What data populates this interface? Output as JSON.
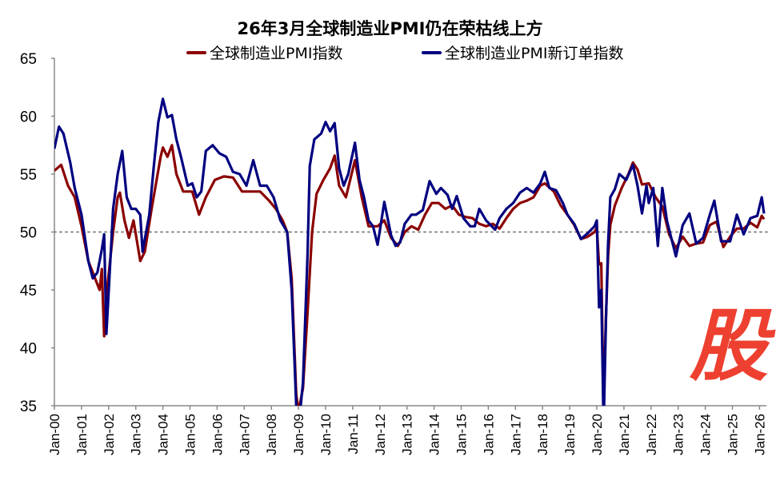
{
  "chart_data": {
    "type": "line",
    "title": "26年3月全球制造业PMI仍在荣枯线上方",
    "xlabel": "",
    "ylabel": "",
    "ylim": [
      35,
      65
    ],
    "xlim": [
      "2000-01",
      "2026-03"
    ],
    "yticks": [
      "35",
      "40",
      "45",
      "50",
      "55",
      "60",
      "65"
    ],
    "xticks": [
      "Jan-00",
      "Jan-01",
      "Jan-02",
      "Jan-03",
      "Jan-04",
      "Jan-05",
      "Jan-06",
      "Jan-07",
      "Jan-08",
      "Jan-09",
      "Jan-10",
      "Jan-11",
      "Jan-12",
      "Jan-13",
      "Jan-14",
      "Jan-15",
      "Jan-16",
      "Jan-17",
      "Jan-18",
      "Jan-19",
      "Jan-20",
      "Jan-21",
      "Jan-22",
      "Jan-23",
      "Jan-24",
      "Jan-25",
      "Jan-26"
    ],
    "reference_line": {
      "y": 50,
      "style": "dotted",
      "color": "#888888"
    },
    "grid": false,
    "legend_position": "top",
    "series": [
      {
        "name": "全球制造业PMI指数",
        "color": "#8b0000",
        "points": [
          [
            "2000-01",
            55.3
          ],
          [
            "2000-04",
            55.8
          ],
          [
            "2000-07",
            54
          ],
          [
            "2000-10",
            53
          ],
          [
            "2001-01",
            50.5
          ],
          [
            "2001-04",
            47.5
          ],
          [
            "2001-07",
            46
          ],
          [
            "2001-09",
            45
          ],
          [
            "2001-10",
            46.8
          ],
          [
            "2001-11",
            41
          ],
          [
            "2001-12",
            44.5
          ],
          [
            "2002-03",
            50
          ],
          [
            "2002-05",
            53
          ],
          [
            "2002-06",
            53.4
          ],
          [
            "2002-08",
            51
          ],
          [
            "2002-10",
            49.5
          ],
          [
            "2002-12",
            51
          ],
          [
            "2003-03",
            47.5
          ],
          [
            "2003-05",
            48.3
          ],
          [
            "2003-08",
            52
          ],
          [
            "2003-12",
            56.5
          ],
          [
            "2004-01",
            57.3
          ],
          [
            "2004-03",
            56.5
          ],
          [
            "2004-05",
            57.5
          ],
          [
            "2004-07",
            55
          ],
          [
            "2004-10",
            53.5
          ],
          [
            "2005-02",
            53.5
          ],
          [
            "2005-05",
            51.5
          ],
          [
            "2005-08",
            53
          ],
          [
            "2005-12",
            54.5
          ],
          [
            "2006-04",
            54.8
          ],
          [
            "2006-08",
            54.7
          ],
          [
            "2006-12",
            53.5
          ],
          [
            "2007-04",
            53.5
          ],
          [
            "2007-08",
            53.5
          ],
          [
            "2007-12",
            52.7
          ],
          [
            "2008-03",
            52
          ],
          [
            "2008-06",
            51
          ],
          [
            "2008-08",
            50
          ],
          [
            "2008-10",
            46
          ],
          [
            "2008-12",
            36
          ],
          [
            "2009-01",
            34.5
          ],
          [
            "2009-03",
            36.5
          ],
          [
            "2009-05",
            43
          ],
          [
            "2009-07",
            50
          ],
          [
            "2009-09",
            53.3
          ],
          [
            "2009-12",
            54.5
          ],
          [
            "2010-03",
            55.5
          ],
          [
            "2010-05",
            56.6
          ],
          [
            "2010-07",
            54
          ],
          [
            "2010-10",
            53
          ],
          [
            "2011-02",
            56.2
          ],
          [
            "2011-05",
            53
          ],
          [
            "2011-08",
            50.5
          ],
          [
            "2011-12",
            50.5
          ],
          [
            "2012-03",
            51
          ],
          [
            "2012-06",
            49.5
          ],
          [
            "2012-09",
            48.8
          ],
          [
            "2012-12",
            50
          ],
          [
            "2013-03",
            50.5
          ],
          [
            "2013-06",
            50.2
          ],
          [
            "2013-09",
            51.5
          ],
          [
            "2013-12",
            52.5
          ],
          [
            "2014-03",
            52.5
          ],
          [
            "2014-06",
            52
          ],
          [
            "2014-09",
            52.3
          ],
          [
            "2014-12",
            51.5
          ],
          [
            "2015-03",
            51.3
          ],
          [
            "2015-06",
            51.2
          ],
          [
            "2015-09",
            50.7
          ],
          [
            "2015-12",
            50.5
          ],
          [
            "2016-03",
            50.7
          ],
          [
            "2016-06",
            50.3
          ],
          [
            "2016-09",
            51.2
          ],
          [
            "2016-12",
            52
          ],
          [
            "2017-03",
            52.5
          ],
          [
            "2017-06",
            52.7
          ],
          [
            "2017-09",
            53
          ],
          [
            "2017-12",
            54
          ],
          [
            "2018-02",
            54.2
          ],
          [
            "2018-06",
            53.5
          ],
          [
            "2018-09",
            52.3
          ],
          [
            "2018-12",
            51.5
          ],
          [
            "2019-03",
            50.6
          ],
          [
            "2019-06",
            49.4
          ],
          [
            "2019-09",
            49.6
          ],
          [
            "2019-12",
            50
          ],
          [
            "2020-01",
            50.4
          ],
          [
            "2020-02",
            47.2
          ],
          [
            "2020-03",
            47.3
          ],
          [
            "2020-04",
            34.5
          ],
          [
            "2020-05",
            42.4
          ],
          [
            "2020-06",
            47.9
          ],
          [
            "2020-07",
            50.6
          ],
          [
            "2020-09",
            52.3
          ],
          [
            "2020-12",
            53.8
          ],
          [
            "2021-03",
            55
          ],
          [
            "2021-05",
            56
          ],
          [
            "2021-07",
            55.4
          ],
          [
            "2021-09",
            54.1
          ],
          [
            "2021-12",
            54.2
          ],
          [
            "2022-03",
            53
          ],
          [
            "2022-06",
            52.2
          ],
          [
            "2022-09",
            49.8
          ],
          [
            "2022-12",
            48.6
          ],
          [
            "2023-03",
            49.6
          ],
          [
            "2023-06",
            48.8
          ],
          [
            "2023-09",
            49
          ],
          [
            "2023-12",
            49.1
          ],
          [
            "2024-03",
            50.6
          ],
          [
            "2024-06",
            50.9
          ],
          [
            "2024-09",
            48.7
          ],
          [
            "2024-12",
            49.6
          ],
          [
            "2025-03",
            50.3
          ],
          [
            "2025-06",
            50.3
          ],
          [
            "2025-09",
            50.8
          ],
          [
            "2025-12",
            50.4
          ],
          [
            "2026-02",
            51.4
          ],
          [
            "2026-03",
            51.1
          ]
        ]
      },
      {
        "name": "全球制造业PMI新订单指数",
        "color": "#000080",
        "points": [
          [
            "2000-01",
            57.2
          ],
          [
            "2000-03",
            59.1
          ],
          [
            "2000-05",
            58.5
          ],
          [
            "2000-08",
            56
          ],
          [
            "2000-10",
            53.8
          ],
          [
            "2001-01",
            51.5
          ],
          [
            "2001-04",
            47.5
          ],
          [
            "2001-06",
            46
          ],
          [
            "2001-08",
            46.5
          ],
          [
            "2001-10",
            48.5
          ],
          [
            "2001-11",
            49.8
          ],
          [
            "2001-12",
            41.2
          ],
          [
            "2002-01",
            44.8
          ],
          [
            "2002-03",
            52
          ],
          [
            "2002-05",
            55
          ],
          [
            "2002-07",
            57
          ],
          [
            "2002-09",
            53
          ],
          [
            "2002-11",
            52
          ],
          [
            "2003-01",
            52
          ],
          [
            "2003-03",
            51.5
          ],
          [
            "2003-04",
            48.3
          ],
          [
            "2003-07",
            51.5
          ],
          [
            "2003-09",
            55.7
          ],
          [
            "2003-11",
            59.5
          ],
          [
            "2004-01",
            61.5
          ],
          [
            "2004-03",
            59.9
          ],
          [
            "2004-05",
            60.1
          ],
          [
            "2004-07",
            58
          ],
          [
            "2004-09",
            56.5
          ],
          [
            "2004-12",
            54
          ],
          [
            "2005-02",
            54.2
          ],
          [
            "2005-04",
            53
          ],
          [
            "2005-06",
            53.5
          ],
          [
            "2005-08",
            57
          ],
          [
            "2005-11",
            57.5
          ],
          [
            "2006-02",
            56.8
          ],
          [
            "2006-05",
            56.5
          ],
          [
            "2006-08",
            55.2
          ],
          [
            "2006-11",
            55
          ],
          [
            "2007-02",
            54
          ],
          [
            "2007-05",
            56.2
          ],
          [
            "2007-08",
            54
          ],
          [
            "2007-11",
            54
          ],
          [
            "2008-02",
            53
          ],
          [
            "2008-05",
            51
          ],
          [
            "2008-08",
            50
          ],
          [
            "2008-10",
            45
          ],
          [
            "2008-12",
            35
          ],
          [
            "2009-01",
            33
          ],
          [
            "2009-03",
            37
          ],
          [
            "2009-05",
            48
          ],
          [
            "2009-06",
            55.7
          ],
          [
            "2009-08",
            58
          ],
          [
            "2009-11",
            58.5
          ],
          [
            "2010-01",
            59.5
          ],
          [
            "2010-03",
            58.7
          ],
          [
            "2010-05",
            59.4
          ],
          [
            "2010-07",
            55.5
          ],
          [
            "2010-09",
            54
          ],
          [
            "2010-11",
            55
          ],
          [
            "2011-02",
            57.7
          ],
          [
            "2011-04",
            54.5
          ],
          [
            "2011-06",
            53
          ],
          [
            "2011-08",
            51
          ],
          [
            "2011-10",
            50.5
          ],
          [
            "2011-12",
            48.9
          ],
          [
            "2012-03",
            52.6
          ],
          [
            "2012-06",
            49.7
          ],
          [
            "2012-08",
            48.8
          ],
          [
            "2012-10",
            49.1
          ],
          [
            "2012-12",
            50.7
          ],
          [
            "2013-03",
            51.5
          ],
          [
            "2013-05",
            51.5
          ],
          [
            "2013-08",
            51.9
          ],
          [
            "2013-11",
            54.4
          ],
          [
            "2014-02",
            53.3
          ],
          [
            "2014-04",
            53.8
          ],
          [
            "2014-07",
            53.2
          ],
          [
            "2014-09",
            52
          ],
          [
            "2014-11",
            53.1
          ],
          [
            "2015-02",
            51.2
          ],
          [
            "2015-05",
            50.5
          ],
          [
            "2015-07",
            50.5
          ],
          [
            "2015-09",
            52
          ],
          [
            "2015-12",
            51
          ],
          [
            "2016-01",
            50.8
          ],
          [
            "2016-04",
            50.2
          ],
          [
            "2016-06",
            51.2
          ],
          [
            "2016-09",
            52
          ],
          [
            "2016-12",
            52.5
          ],
          [
            "2017-03",
            53.4
          ],
          [
            "2017-06",
            53.8
          ],
          [
            "2017-09",
            53.4
          ],
          [
            "2017-12",
            54.2
          ],
          [
            "2018-02",
            55.2
          ],
          [
            "2018-04",
            53.8
          ],
          [
            "2018-07",
            53.6
          ],
          [
            "2018-10",
            52.5
          ],
          [
            "2018-12",
            51.5
          ],
          [
            "2019-03",
            50.7
          ],
          [
            "2019-06",
            49.4
          ],
          [
            "2019-09",
            49.9
          ],
          [
            "2019-12",
            50.5
          ],
          [
            "2020-01",
            51
          ],
          [
            "2020-02",
            43.5
          ],
          [
            "2020-03",
            45
          ],
          [
            "2020-04",
            33
          ],
          [
            "2020-05",
            42
          ],
          [
            "2020-06",
            49
          ],
          [
            "2020-07",
            53
          ],
          [
            "2020-09",
            53.7
          ],
          [
            "2020-11",
            55
          ],
          [
            "2021-02",
            54.5
          ],
          [
            "2021-05",
            55.8
          ],
          [
            "2021-07",
            54
          ],
          [
            "2021-09",
            51.6
          ],
          [
            "2021-11",
            54
          ],
          [
            "2021-12",
            52.5
          ],
          [
            "2022-02",
            53.8
          ],
          [
            "2022-04",
            48.8
          ],
          [
            "2022-06",
            53.8
          ],
          [
            "2022-08",
            51
          ],
          [
            "2022-12",
            47.9
          ],
          [
            "2023-03",
            50.6
          ],
          [
            "2023-06",
            51.6
          ],
          [
            "2023-09",
            49
          ],
          [
            "2023-12",
            49.5
          ],
          [
            "2024-03",
            51.5
          ],
          [
            "2024-05",
            52.7
          ],
          [
            "2024-08",
            49.2
          ],
          [
            "2024-12",
            49.2
          ],
          [
            "2025-03",
            51.5
          ],
          [
            "2025-06",
            49.8
          ],
          [
            "2025-09",
            51.2
          ],
          [
            "2025-12",
            51.4
          ],
          [
            "2026-02",
            53
          ],
          [
            "2026-03",
            51.6
          ]
        ]
      }
    ]
  },
  "watermark": "股"
}
